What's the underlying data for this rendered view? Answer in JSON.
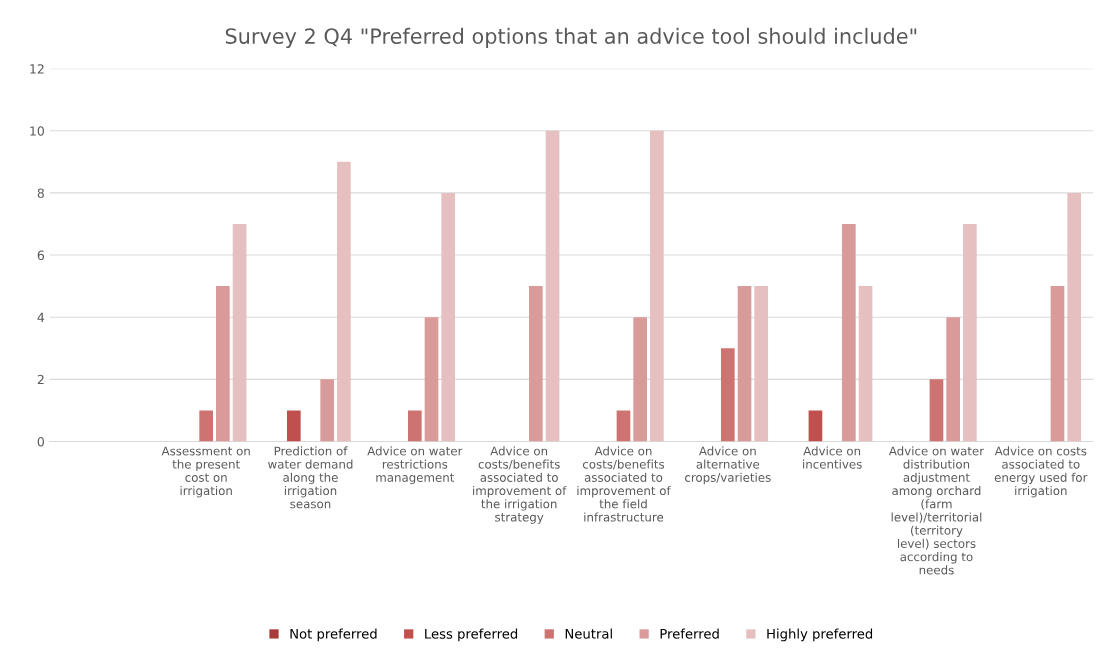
{
  "chart_data": {
    "type": "bar",
    "title": "Survey 2 Q4 \"Preferred options that an advice tool should include\"",
    "categories": [
      null,
      "Assessment on the present cost on irrigation",
      "Prediction of water demand along the irrigation season",
      "Advice on water restrictions management",
      "Advice on costs/benefits associated to improvement of the irrigation strategy",
      "Advice on costs/benefits associated to improvement of the field infrastructure",
      "Advice on alternative crops/varieties",
      "Advice on incentives",
      "Advice on water distribution adjustment among orchard (farm level)/territorial (territory level) sectors according to needs",
      "Advice on costs associated to energy used for irrigation"
    ],
    "series": [
      {
        "name": "Not preferred",
        "color": "#a83a3a",
        "values": [
          0,
          0,
          0,
          0,
          0,
          0,
          0,
          0,
          0,
          0
        ]
      },
      {
        "name": "Less preferred",
        "color": "#c0504d",
        "values": [
          0,
          0,
          1,
          0,
          0,
          0,
          0,
          1,
          0,
          0
        ]
      },
      {
        "name": "Neutral",
        "color": "#cd7371",
        "values": [
          0,
          1,
          0,
          1,
          0,
          1,
          3,
          0,
          2,
          0
        ]
      },
      {
        "name": "Preferred",
        "color": "#d99b9a",
        "values": [
          0,
          5,
          2,
          4,
          5,
          4,
          5,
          7,
          4,
          5
        ]
      },
      {
        "name": "Highly preferred",
        "color": "#e6c0c0",
        "values": [
          0,
          7,
          9,
          8,
          10,
          10,
          5,
          5,
          7,
          8
        ]
      }
    ],
    "ylim": [
      0,
      12
    ],
    "yticks": [
      0,
      2,
      4,
      6,
      8,
      10,
      12
    ],
    "grid": "y",
    "legend": "bottom"
  }
}
